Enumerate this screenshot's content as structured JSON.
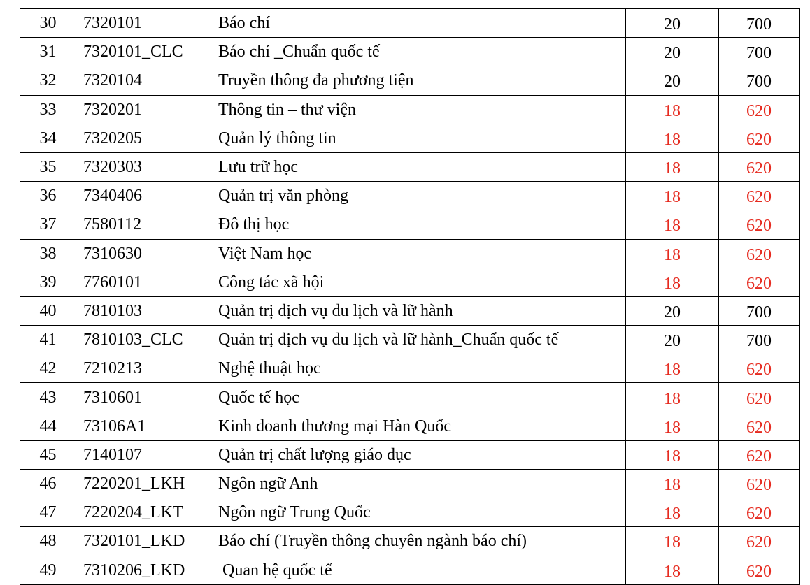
{
  "colors": {
    "highlight": "#e62a1f",
    "text": "#000000"
  },
  "rows": [
    {
      "stt": "30",
      "code": "7320101",
      "name": "Báo chí",
      "num": "20",
      "score": "700",
      "highlight": false
    },
    {
      "stt": "31",
      "code": "7320101_CLC",
      "name": "Báo chí _Chuẩn quốc tế",
      "num": "20",
      "score": "700",
      "highlight": false
    },
    {
      "stt": "32",
      "code": "7320104",
      "name": "Truyền thông đa phương tiện",
      "num": "20",
      "score": "700",
      "highlight": false
    },
    {
      "stt": "33",
      "code": "7320201",
      "name": "Thông tin – thư viện",
      "num": "18",
      "score": "620",
      "highlight": true
    },
    {
      "stt": "34",
      "code": "7320205",
      "name": "Quản lý thông tin",
      "num": "18",
      "score": "620",
      "highlight": true
    },
    {
      "stt": "35",
      "code": "7320303",
      "name": "Lưu trữ học",
      "num": "18",
      "score": "620",
      "highlight": true
    },
    {
      "stt": "36",
      "code": "7340406",
      "name": "Quản trị văn phòng",
      "num": "18",
      "score": "620",
      "highlight": true
    },
    {
      "stt": "37",
      "code": "7580112",
      "name": "Đô thị học",
      "num": "18",
      "score": "620",
      "highlight": true
    },
    {
      "stt": "38",
      "code": "7310630",
      "name": "Việt Nam học",
      "num": "18",
      "score": "620",
      "highlight": true
    },
    {
      "stt": "39",
      "code": "7760101",
      "name": "Công tác xã hội",
      "num": "18",
      "score": "620",
      "highlight": true
    },
    {
      "stt": "40",
      "code": "7810103",
      "name": "Quản trị dịch vụ du lịch và lữ hành",
      "num": "20",
      "score": "700",
      "highlight": false
    },
    {
      "stt": "41",
      "code": "7810103_CLC",
      "name": "Quản trị dịch vụ du lịch và lữ hành_Chuẩn quốc tế",
      "num": "20",
      "score": "700",
      "highlight": false
    },
    {
      "stt": "42",
      "code": "7210213",
      "name": "Nghệ thuật học",
      "num": "18",
      "score": "620",
      "highlight": true
    },
    {
      "stt": "43",
      "code": "7310601",
      "name": "Quốc tế học",
      "num": "18",
      "score": "620",
      "highlight": true
    },
    {
      "stt": "44",
      "code": "73106A1",
      "name": "Kinh doanh thương mại Hàn Quốc",
      "num": "18",
      "score": "620",
      "highlight": true
    },
    {
      "stt": "45",
      "code": "7140107",
      "name": "Quản trị chất lượng giáo dục",
      "num": "18",
      "score": "620",
      "highlight": true
    },
    {
      "stt": "46",
      "code": "7220201_LKH",
      "name": "Ngôn ngữ Anh",
      "num": "18",
      "score": "620",
      "highlight": true
    },
    {
      "stt": "47",
      "code": "7220204_LKT",
      "name": "Ngôn ngữ Trung Quốc",
      "num": "18",
      "score": "620",
      "highlight": true
    },
    {
      "stt": "48",
      "code": "7320101_LKD",
      "name": "Báo chí (Truyền thông chuyên ngành báo chí)",
      "num": "18",
      "score": "620",
      "highlight": true
    },
    {
      "stt": "49",
      "code": "7310206_LKD",
      "name": " Quan hệ quốc tế",
      "num": "18",
      "score": "620",
      "highlight": true
    }
  ]
}
